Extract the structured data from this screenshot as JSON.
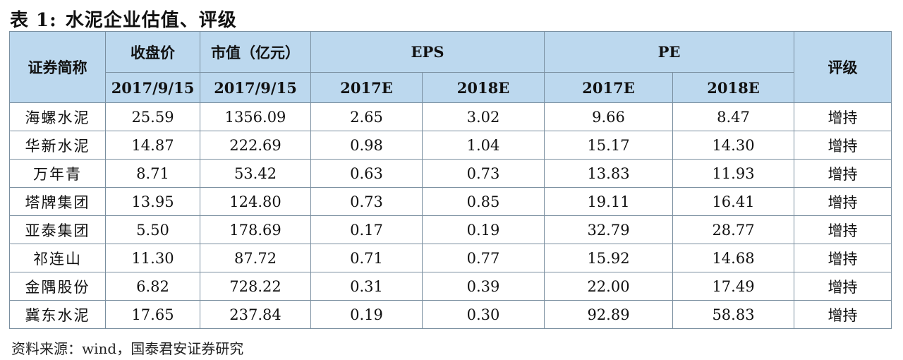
{
  "caption": {
    "number": "表 1:",
    "title": "水泥企业估值、评级"
  },
  "header": {
    "col_name": "证券简称",
    "col_close": "收盘价",
    "col_mktcap": "市值（亿元）",
    "col_eps": "EPS",
    "col_pe": "PE",
    "col_rating": "评级",
    "sub_close_date": "2017/9/15",
    "sub_mktcap_date": "2017/9/15",
    "sub_eps_2017": "2017E",
    "sub_eps_2018": "2018E",
    "sub_pe_2017": "2017E",
    "sub_pe_2018": "2018E"
  },
  "rows": [
    {
      "name": "海螺水泥",
      "close": "25.59",
      "mktcap": "1356.09",
      "eps17": "2.65",
      "eps18": "3.02",
      "pe17": "9.66",
      "pe18": "8.47",
      "rating": "增持"
    },
    {
      "name": "华新水泥",
      "close": "14.87",
      "mktcap": "222.69",
      "eps17": "0.98",
      "eps18": "1.04",
      "pe17": "15.17",
      "pe18": "14.30",
      "rating": "增持"
    },
    {
      "name": "万年青",
      "close": "8.71",
      "mktcap": "53.42",
      "eps17": "0.63",
      "eps18": "0.73",
      "pe17": "13.83",
      "pe18": "11.93",
      "rating": "增持"
    },
    {
      "name": "塔牌集团",
      "close": "13.95",
      "mktcap": "124.80",
      "eps17": "0.73",
      "eps18": "0.85",
      "pe17": "19.11",
      "pe18": "16.41",
      "rating": "增持"
    },
    {
      "name": "亚泰集团",
      "close": "5.50",
      "mktcap": "178.69",
      "eps17": "0.17",
      "eps18": "0.19",
      "pe17": "32.79",
      "pe18": "28.77",
      "rating": "增持"
    },
    {
      "name": "祁连山",
      "close": "11.30",
      "mktcap": "87.72",
      "eps17": "0.71",
      "eps18": "0.77",
      "pe17": "15.92",
      "pe18": "14.68",
      "rating": "增持"
    },
    {
      "name": "金隅股份",
      "close": "6.82",
      "mktcap": "728.22",
      "eps17": "0.31",
      "eps18": "0.39",
      "pe17": "22.00",
      "pe18": "17.49",
      "rating": "增持"
    },
    {
      "name": "冀东水泥",
      "close": "17.65",
      "mktcap": "237.84",
      "eps17": "0.19",
      "eps18": "0.30",
      "pe17": "92.89",
      "pe18": "58.83",
      "rating": "增持"
    }
  ],
  "source": "资料来源：wind，国泰君安证券研究"
}
